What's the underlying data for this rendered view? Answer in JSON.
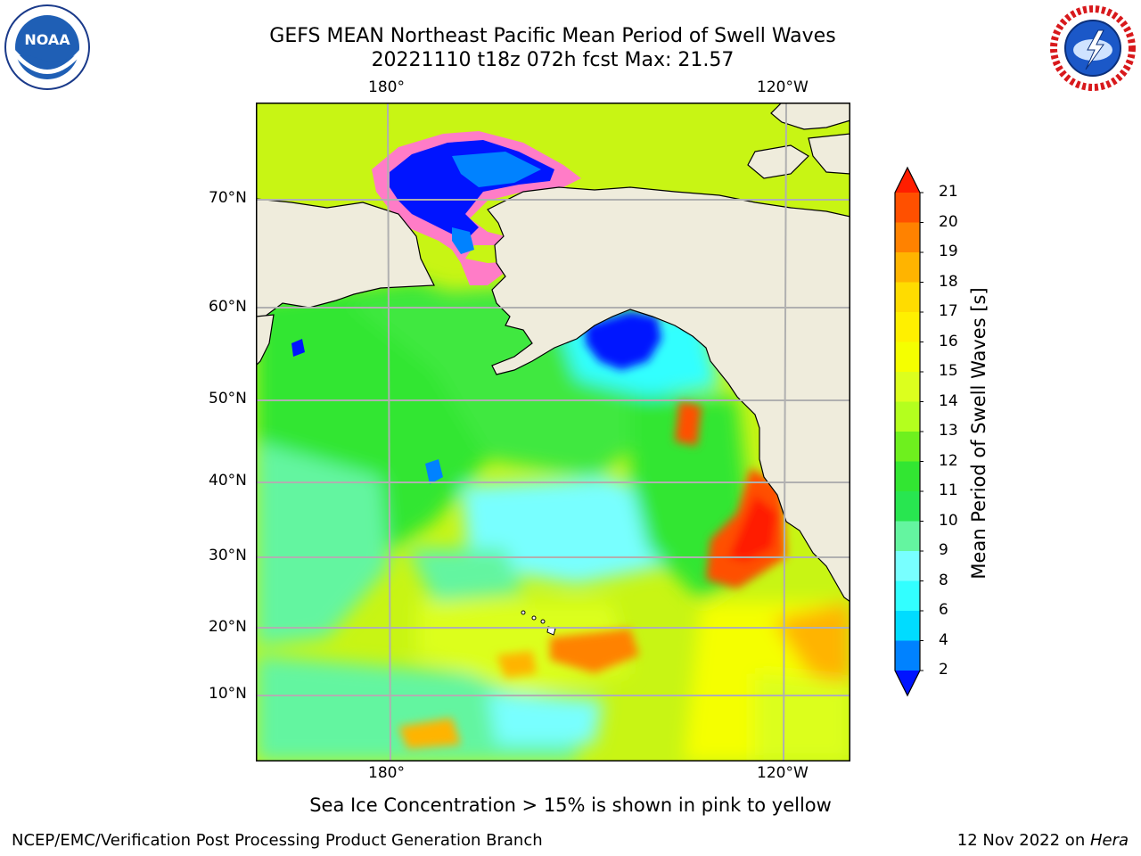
{
  "header": {
    "title_line1": "GEFS MEAN Northeast Pacific Mean Period of Swell Waves",
    "title_line2": "20221110 t18z 072h fcst   Max: 21.57"
  },
  "logos": {
    "left": {
      "name": "noaa-logo",
      "text": "NOAA"
    },
    "right": {
      "name": "nws-logo",
      "text": "NATIONAL WEATHER SERVICE"
    }
  },
  "map": {
    "lon_labels": [
      "180°",
      "120°W"
    ],
    "lat_labels": [
      "70°N",
      "60°N",
      "50°N",
      "40°N",
      "30°N",
      "20°N",
      "10°N"
    ],
    "land_color": "#efecdc",
    "grid_color": "#b0b0b0"
  },
  "colorbar": {
    "label": "Mean Period of Swell Waves [s]",
    "ticks": [
      "21",
      "20",
      "19",
      "18",
      "17",
      "16",
      "15",
      "14",
      "13",
      "12",
      "11",
      "10",
      "9",
      "8",
      "6",
      "4",
      "2"
    ],
    "colors": [
      "#ff1e00",
      "#ff5000",
      "#ff8200",
      "#ffb400",
      "#ffdc00",
      "#fff000",
      "#f5ff00",
      "#dcff1e",
      "#b4ff1e",
      "#6ef01e",
      "#32e632",
      "#28e650",
      "#64f5a0",
      "#78ffff",
      "#32ffff",
      "#00dcff",
      "#0082ff",
      "#0014ff"
    ]
  },
  "note": "Sea Ice Concentration > 15% is shown in pink to yellow",
  "footer": {
    "left": "NCEP/EMC/Verification Post Processing Product Generation Branch",
    "right_date": "12 Nov 2022 on ",
    "right_host": "Hera"
  }
}
